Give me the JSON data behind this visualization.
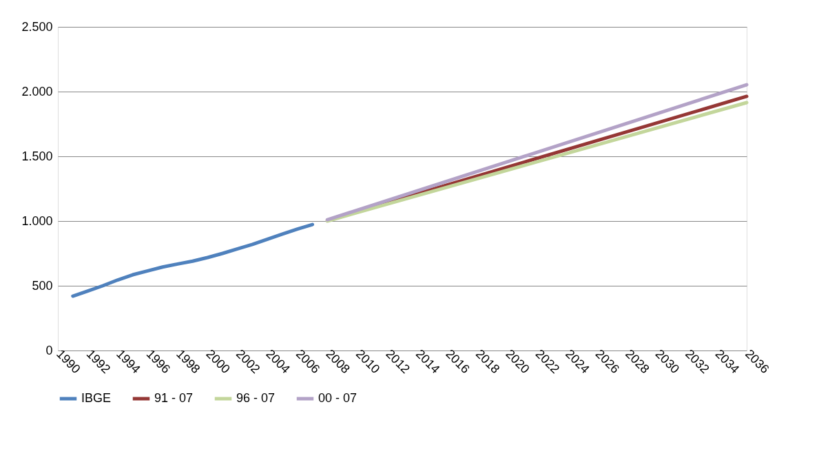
{
  "chart_data": {
    "type": "line",
    "xlim": [
      1990,
      2036
    ],
    "xticks": [
      1990,
      1992,
      1994,
      1996,
      1998,
      2000,
      2002,
      2004,
      2006,
      2008,
      2010,
      2012,
      2014,
      2016,
      2018,
      2020,
      2022,
      2024,
      2026,
      2028,
      2030,
      2032,
      2034,
      2036
    ],
    "ylim": [
      0,
      2500
    ],
    "yticks": [
      0,
      {
        "value": 500,
        "label": "500"
      },
      {
        "value": 1000,
        "label": "1.000"
      },
      {
        "value": 1500,
        "label": "1.500"
      },
      {
        "value": 2000,
        "label": "2.000"
      },
      {
        "value": 2500,
        "label": "2.500"
      }
    ],
    "grid": "y",
    "legend": "bottom",
    "marker": "none",
    "line_style": "solid",
    "series": [
      {
        "name": "IBGE",
        "color": "#4f81bd",
        "x": [
          1991,
          1992,
          1993,
          1994,
          1995,
          1996,
          1997,
          1998,
          1999,
          2000,
          2001,
          2002,
          2003,
          2004,
          2005,
          2006,
          2007
        ],
        "values": [
          420,
          460,
          500,
          545,
          585,
          615,
          645,
          668,
          690,
          718,
          750,
          785,
          820,
          860,
          900,
          938,
          973
        ]
      },
      {
        "name": "91 - 07",
        "color": "#953735",
        "x": [
          2008,
          2036
        ],
        "values": [
          1005,
          1963
        ]
      },
      {
        "name": "96 - 07",
        "color": "#c3d69b",
        "x": [
          2008,
          2036
        ],
        "values": [
          1000,
          1915
        ]
      },
      {
        "name": "00 - 07",
        "color": "#b3a2c7",
        "x": [
          2008,
          2036
        ],
        "values": [
          1010,
          2053
        ]
      }
    ]
  }
}
